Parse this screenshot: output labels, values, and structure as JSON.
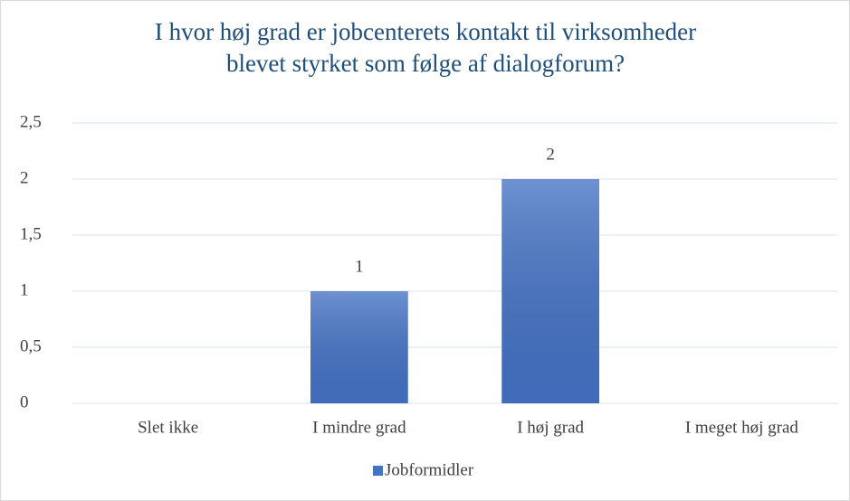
{
  "chart_data": {
    "type": "bar",
    "title": [
      "I hvor høj grad er jobcenterets kontakt til virksomheder",
      "blevet styrket som følge af dialogforum?"
    ],
    "categories": [
      "Slet ikke",
      "I mindre grad",
      "I høj grad",
      "I meget høj grad"
    ],
    "series": [
      {
        "name": "Jobformidler",
        "color": "#4472c4",
        "values": [
          null,
          1,
          2,
          null
        ]
      }
    ],
    "ylim": [
      0,
      2.5
    ],
    "yticks": [
      0,
      {
        "value": 0.5,
        "label": "0,5"
      },
      1,
      {
        "value": 1.5,
        "label": "1,5"
      },
      2,
      {
        "value": 2.5,
        "label": "2,5"
      }
    ],
    "grid": true,
    "legend": "bottom"
  }
}
